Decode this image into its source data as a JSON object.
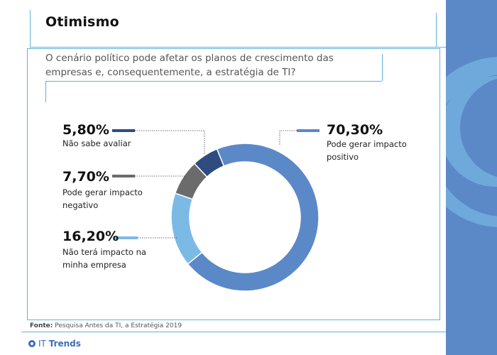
{
  "header": {
    "title": "Otimismo"
  },
  "question": "O cenário político pode afetar os planos de crescimento das empresas e, consequentemente, a estratégia de TI?",
  "source": {
    "label": "Fonte:",
    "text": "Pesquisa Antes da TI, a Estratégia 2019"
  },
  "brand": {
    "it": "IT",
    "trends": "Trends"
  },
  "colors": {
    "positivo": "#5b89c8",
    "sem_impacto": "#7cbae6",
    "negativo": "#6b6b6b",
    "nao_sabe": "#2e4c80",
    "frame": "#5fb3d9",
    "side_panel": "#5b89c8"
  },
  "chart_data": {
    "type": "pie",
    "donut": true,
    "title": "",
    "slices": [
      {
        "name": "Pode gerar impacto positivo",
        "pct_label": "70,30%",
        "value": 70.3,
        "label_lines": [
          "Pode gerar impacto",
          "positivo"
        ],
        "color": "#5b89c8"
      },
      {
        "name": "Não terá impacto na minha empresa",
        "pct_label": "16,20%",
        "value": 16.2,
        "label_lines": [
          "Não terá impacto na",
          "minha empresa"
        ],
        "color": "#7cbae6"
      },
      {
        "name": "Pode gerar impacto negativo",
        "pct_label": "7,70%",
        "value": 7.7,
        "label_lines": [
          "Pode gerar impacto",
          "negativo"
        ],
        "color": "#6b6b6b"
      },
      {
        "name": "Não sabe avaliar",
        "pct_label": "5,80%",
        "value": 5.8,
        "label_lines": [
          "Não sabe avaliar"
        ],
        "color": "#2e4c80"
      }
    ]
  }
}
